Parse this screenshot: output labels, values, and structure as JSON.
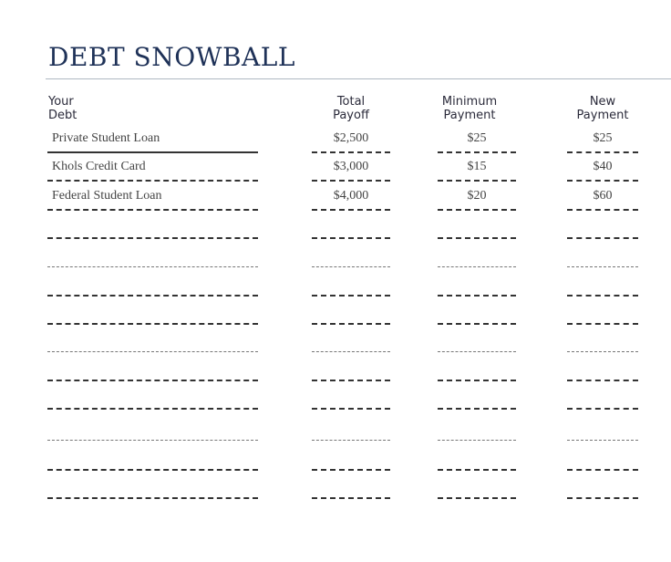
{
  "title": "DEBT SNOWBALL",
  "headers": {
    "debt": [
      "Your",
      "Debt"
    ],
    "payoff": [
      "Total",
      "Payoff"
    ],
    "minimum": [
      "Minimum",
      "Payment"
    ],
    "new_payment": [
      "New",
      "Payment"
    ]
  },
  "rows": [
    {
      "debt": "Private Student Loan",
      "payoff": "$2,500",
      "minimum": "$25",
      "new_payment": "$25"
    },
    {
      "debt": "Khols Credit Card",
      "payoff": "$3,000",
      "minimum": "$15",
      "new_payment": "$40"
    },
    {
      "debt": "Federal Student Loan",
      "payoff": "$4,000",
      "minimum": "$20",
      "new_payment": "$60"
    }
  ],
  "blank_rows": 10,
  "colors": {
    "title": "#1f3258"
  }
}
